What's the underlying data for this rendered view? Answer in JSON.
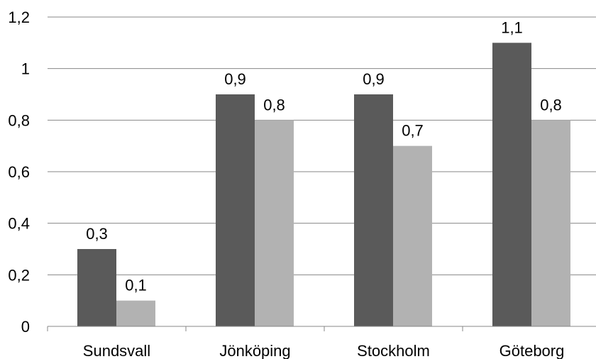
{
  "chart_data": {
    "type": "bar",
    "categories": [
      "Sundsvall",
      "Jönköping",
      "Stockholm",
      "Göteborg"
    ],
    "series": [
      {
        "color": "#5a5a5a",
        "values": [
          0.3,
          0.9,
          0.9,
          1.1
        ],
        "labels": [
          "0,3",
          "0,9",
          "0,9",
          "1,1"
        ]
      },
      {
        "color": "#b2b2b2",
        "values": [
          0.1,
          0.8,
          0.7,
          0.8
        ],
        "labels": [
          "0,1",
          "0,8",
          "0,7",
          "0,8"
        ]
      }
    ],
    "yticks": [
      0,
      0.2,
      0.4,
      0.6,
      0.8,
      1.0,
      1.2
    ],
    "ytick_labels": [
      "0",
      "0,2",
      "0,4",
      "0,6",
      "0,8",
      "1",
      "1,2"
    ],
    "ylim": [
      0,
      1.2
    ],
    "grid": true,
    "legend": "none",
    "title": "",
    "xlabel": "",
    "ylabel": ""
  }
}
